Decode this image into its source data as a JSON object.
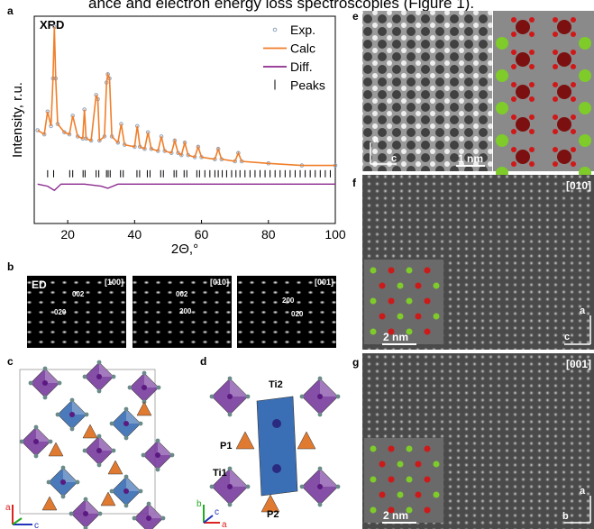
{
  "caption_fragment": "ance and electron energy loss spectroscopies (Figure 1).",
  "chart_data": {
    "type": "line",
    "panel_label": "a",
    "title": "XRD",
    "x_label": "2Θ,°",
    "y_label": "Intensity, r.u.",
    "xlim": [
      10,
      100
    ],
    "xticks": [
      20,
      40,
      60,
      80,
      100
    ],
    "ylim": [
      0,
      100
    ],
    "x": [
      11,
      13,
      14,
      15,
      15.6,
      16,
      16.4,
      17,
      19,
      20.5,
      21.5,
      23,
      24.5,
      25,
      25.5,
      27,
      28.5,
      29,
      29.5,
      31,
      31.6,
      32,
      32.5,
      33.2,
      35,
      36,
      37,
      40,
      40.8,
      41.6,
      43,
      44,
      45,
      47,
      48,
      49,
      51,
      52,
      53,
      54,
      55,
      56,
      58,
      59,
      60,
      64,
      65,
      66,
      70,
      71,
      72,
      80,
      90,
      100
    ],
    "series": [
      {
        "name": "Exp.",
        "color": "#8ea3bd",
        "values": [
          45,
          43,
          54,
          47,
          70,
          95,
          70,
          48,
          44,
          43,
          52,
          42,
          41,
          55,
          41,
          40,
          62,
          60,
          40,
          42,
          68,
          72,
          70,
          42,
          39,
          48,
          38,
          37,
          47,
          37,
          36,
          44,
          36,
          35,
          42,
          35,
          34,
          40,
          34,
          33,
          39,
          33,
          32,
          37,
          32,
          31,
          36,
          31,
          30,
          34,
          30,
          29,
          28,
          28
        ]
      },
      {
        "name": "Calc",
        "color": "#f07f2a",
        "values": [
          45,
          43,
          54,
          47,
          70,
          95,
          70,
          48,
          44,
          43,
          52,
          42,
          41,
          55,
          41,
          40,
          62,
          60,
          40,
          42,
          68,
          72,
          70,
          42,
          39,
          48,
          38,
          37,
          47,
          37,
          36,
          44,
          36,
          35,
          42,
          35,
          34,
          40,
          34,
          33,
          39,
          33,
          32,
          37,
          32,
          31,
          36,
          31,
          30,
          34,
          30,
          29,
          28,
          28
        ]
      },
      {
        "name": "Diff.",
        "color": "#8b2a8e",
        "x": [
          11,
          14,
          16,
          18,
          25,
          30,
          32,
          35,
          45,
          60,
          80,
          100
        ],
        "values": [
          19,
          18,
          16,
          19,
          19,
          18,
          17,
          19,
          19,
          19,
          19,
          19
        ]
      },
      {
        "name": "Peaks",
        "color": "#000000",
        "x": [
          14,
          15.8,
          20.6,
          21.5,
          24.6,
          25.2,
          28.5,
          29.3,
          31.6,
          32.1,
          32.7,
          35.8,
          36.6,
          40.7,
          41.5,
          43.8,
          44.6,
          47.8,
          48.6,
          51.8,
          52.5,
          54.8,
          55.6,
          58.6,
          59.4,
          61,
          62.5,
          64,
          65,
          66.2,
          67.5,
          69,
          70.3,
          71.5,
          73,
          74.5,
          76,
          77.5,
          79,
          80.5,
          82,
          83.5,
          85,
          86.5,
          88,
          89.5,
          91,
          92.5,
          94,
          95.5,
          97,
          98.5
        ],
        "values": [
          24,
          24,
          24,
          24,
          24,
          24,
          24,
          24,
          24,
          24,
          24,
          24,
          24,
          24,
          24,
          24,
          24,
          24,
          24,
          24,
          24,
          24,
          24,
          24,
          24,
          24,
          24,
          24,
          24,
          24,
          24,
          24,
          24,
          24,
          24,
          24,
          24,
          24,
          24,
          24,
          24,
          24,
          24,
          24,
          24,
          24,
          24,
          24,
          24,
          24,
          24,
          24
        ]
      }
    ]
  },
  "panel_b": {
    "label": "b",
    "title": "ED",
    "images": [
      {
        "zone": "[100]",
        "spots": [
          "002",
          "020"
        ]
      },
      {
        "zone": "[010]",
        "spots": [
          "002",
          "200"
        ]
      },
      {
        "zone": "[001]",
        "spots": [
          "200",
          "020"
        ]
      }
    ]
  },
  "panel_c": {
    "label": "c",
    "axes": [
      "a",
      "c"
    ]
  },
  "panel_d": {
    "label": "d",
    "atoms": [
      "Ti2",
      "P1",
      "Ti1",
      "P2"
    ],
    "axes": [
      "b",
      "a",
      "c"
    ]
  },
  "panel_e": {
    "label": "e",
    "axes": [
      "a",
      "c"
    ],
    "scale": "1 nm"
  },
  "panel_f": {
    "label": "f",
    "zone": "[010]",
    "scale": "2 nm",
    "axes": [
      "a",
      "c"
    ]
  },
  "panel_g": {
    "label": "g",
    "zone": "[001]",
    "scale": "2 nm",
    "axes": [
      "a",
      "b"
    ]
  }
}
